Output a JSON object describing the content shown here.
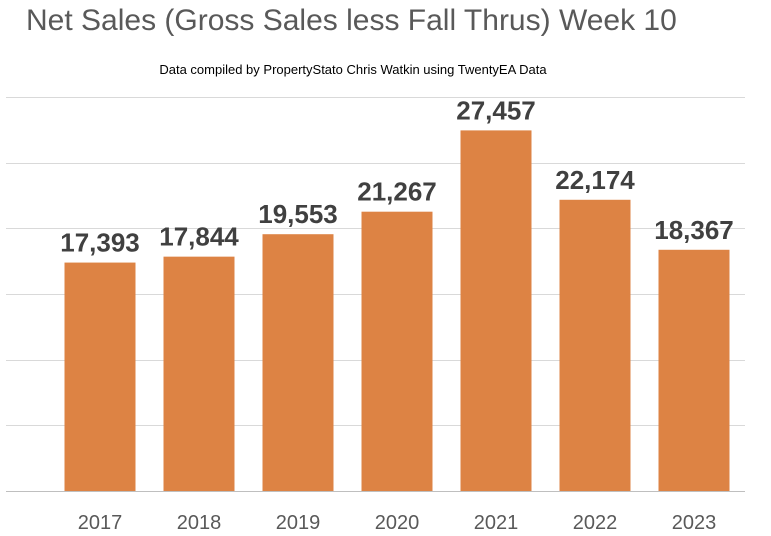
{
  "chart_data": {
    "type": "bar",
    "title": "Net Sales (Gross Sales less Fall Thrus)  Week 10",
    "subtitle": "Data compiled by PropertyStato Chris Watkin using TwentyEA Data",
    "categories": [
      "2017",
      "2018",
      "2019",
      "2020",
      "2021",
      "2022",
      "2023"
    ],
    "values": [
      17393,
      17844,
      19553,
      21267,
      27457,
      22174,
      18367
    ],
    "data_labels": [
      "17,393",
      "17,844",
      "19,553",
      "21,267",
      "27,457",
      "22,174",
      "18,367"
    ],
    "xlabel": "",
    "ylabel": "",
    "ylim": [
      0,
      30000
    ],
    "grid": true,
    "legend": "none",
    "colors": {
      "bar": "#DD8344",
      "grid": "#D9D9D9",
      "axis": "#BFBFBF"
    }
  }
}
